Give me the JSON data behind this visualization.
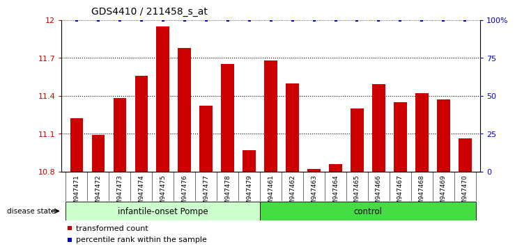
{
  "title": "GDS4410 / 211458_s_at",
  "samples": [
    "GSM947471",
    "GSM947472",
    "GSM947473",
    "GSM947474",
    "GSM947475",
    "GSM947476",
    "GSM947477",
    "GSM947478",
    "GSM947479",
    "GSM947461",
    "GSM947462",
    "GSM947463",
    "GSM947464",
    "GSM947465",
    "GSM947466",
    "GSM947467",
    "GSM947468",
    "GSM947469",
    "GSM947470"
  ],
  "bar_values": [
    11.22,
    11.09,
    11.38,
    11.56,
    11.95,
    11.78,
    11.32,
    11.65,
    10.97,
    11.68,
    11.5,
    10.82,
    10.86,
    11.3,
    11.49,
    11.35,
    11.42,
    11.37,
    11.06
  ],
  "bar_color": "#cc0000",
  "percentile_color": "#0000cc",
  "ymin": 10.8,
  "ymax": 12.0,
  "ytick_vals": [
    10.8,
    11.1,
    11.4,
    11.7,
    12
  ],
  "ytick_labels": [
    "10.8",
    "11.1",
    "11.4",
    "11.7",
    "12"
  ],
  "right_ytick_vals": [
    0,
    25,
    50,
    75,
    100
  ],
  "right_ytick_labels": [
    "0",
    "25",
    "50",
    "75",
    "100%"
  ],
  "group1_label": "infantile-onset Pompe",
  "group2_label": "control",
  "group1_count": 9,
  "group2_count": 10,
  "disease_state_label": "disease state",
  "legend_bar_label": "transformed count",
  "legend_dot_label": "percentile rank within the sample",
  "group1_bg": "#ccffcc",
  "group2_bg": "#44dd44",
  "xtick_bg": "#cccccc"
}
